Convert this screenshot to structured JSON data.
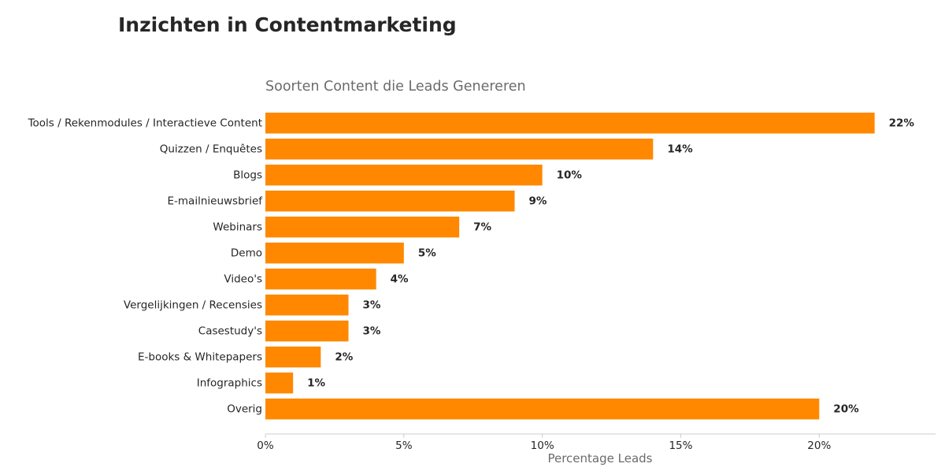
{
  "page": {
    "title": "Inzichten in Contentmarketing"
  },
  "chart_data": {
    "type": "bar",
    "orientation": "horizontal",
    "title": "Soorten Content die Leads Genereren",
    "xlabel": "Percentage Leads",
    "ylabel": "",
    "xlim": [
      0,
      24.2
    ],
    "x_ticks": [
      0,
      5,
      10,
      15,
      20
    ],
    "x_tick_labels": [
      "0%",
      "5%",
      "10%",
      "15%",
      "20%"
    ],
    "grid": false,
    "legend": "none",
    "bar_color": "#ff8800",
    "categories": [
      "Tools / Rekenmodules / Interactieve Content",
      "Quizzen / Enquêtes",
      "Blogs",
      "E-mailnieuwsbrief",
      "Webinars",
      "Demo",
      "Video's",
      "Vergelijkingen / Recensies",
      "Casestudy's",
      "E-books & Whitepapers",
      "Infographics",
      "Overig"
    ],
    "values": [
      22,
      14,
      10,
      9,
      7,
      5,
      4,
      3,
      3,
      2,
      1,
      20
    ],
    "data_labels": [
      "22%",
      "14%",
      "10%",
      "9%",
      "7%",
      "5%",
      "4%",
      "3%",
      "3%",
      "2%",
      "1%",
      "20%"
    ]
  }
}
